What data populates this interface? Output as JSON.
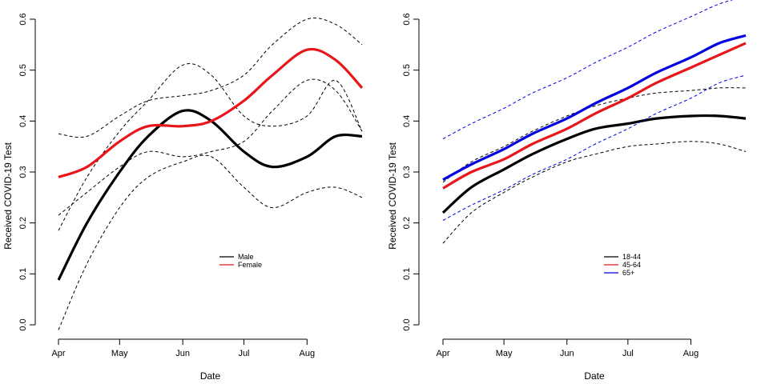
{
  "chart_data": [
    {
      "type": "line",
      "xlabel": "Date",
      "ylabel": "Received COVID-19 Test",
      "ylim": [
        0.0,
        0.6
      ],
      "xlim": [
        "2020-04-01",
        "2020-08-28"
      ],
      "x_ticks": [
        "Apr",
        "May",
        "Jun",
        "Jul",
        "Aug"
      ],
      "y_ticks": [
        "0.0",
        "0.1",
        "0.2",
        "0.3",
        "0.4",
        "0.5",
        "0.6"
      ],
      "legend_position": "bottom-center",
      "x": [
        "2020-04-01",
        "2020-04-15",
        "2020-05-01",
        "2020-05-15",
        "2020-06-01",
        "2020-06-15",
        "2020-07-01",
        "2020-07-15",
        "2020-08-01",
        "2020-08-15",
        "2020-08-28"
      ],
      "series": [
        {
          "name": "Male",
          "color": "#000000",
          "line": "solid",
          "values": [
            0.088,
            0.2,
            0.3,
            0.37,
            0.42,
            0.4,
            0.34,
            0.31,
            0.33,
            0.37,
            0.37
          ],
          "lower": [
            -0.01,
            0.12,
            0.23,
            0.29,
            0.32,
            0.33,
            0.27,
            0.23,
            0.26,
            0.27,
            0.25
          ],
          "upper": [
            0.185,
            0.29,
            0.38,
            0.44,
            0.51,
            0.49,
            0.41,
            0.39,
            0.41,
            0.48,
            0.38
          ]
        },
        {
          "name": "Female",
          "color": "#e8161b",
          "line": "solid",
          "values": [
            0.29,
            0.31,
            0.36,
            0.39,
            0.39,
            0.4,
            0.44,
            0.49,
            0.54,
            0.52,
            0.465
          ],
          "lower": [
            0.215,
            0.26,
            0.31,
            0.34,
            0.33,
            0.34,
            0.36,
            0.42,
            0.48,
            0.46,
            0.38
          ],
          "upper": [
            0.375,
            0.37,
            0.41,
            0.44,
            0.45,
            0.46,
            0.49,
            0.55,
            0.6,
            0.59,
            0.55
          ]
        }
      ]
    },
    {
      "type": "line",
      "xlabel": "Date",
      "ylabel": "Received COVID-19 Test",
      "ylim": [
        0.0,
        0.6
      ],
      "xlim": [
        "2020-04-01",
        "2020-08-28"
      ],
      "x_ticks": [
        "Apr",
        "May",
        "Jun",
        "Jul",
        "Aug"
      ],
      "y_ticks": [
        "0.0",
        "0.1",
        "0.2",
        "0.3",
        "0.4",
        "0.5",
        "0.6"
      ],
      "legend_position": "bottom-center",
      "x": [
        "2020-04-01",
        "2020-04-15",
        "2020-05-01",
        "2020-05-15",
        "2020-06-01",
        "2020-06-15",
        "2020-07-01",
        "2020-07-15",
        "2020-08-01",
        "2020-08-15",
        "2020-08-28"
      ],
      "series": [
        {
          "name": "18-44",
          "color": "#000000",
          "line": "solid",
          "values": [
            0.22,
            0.27,
            0.305,
            0.335,
            0.365,
            0.385,
            0.395,
            0.405,
            0.41,
            0.41,
            0.405
          ],
          "lower": [
            0.16,
            0.22,
            0.26,
            0.29,
            0.32,
            0.335,
            0.35,
            0.355,
            0.36,
            0.355,
            0.34
          ],
          "upper": [
            0.28,
            0.32,
            0.35,
            0.38,
            0.41,
            0.43,
            0.445,
            0.455,
            0.46,
            0.465,
            0.465
          ]
        },
        {
          "name": "45-64",
          "color": "#e8161b",
          "line": "solid",
          "values": [
            0.268,
            0.3,
            0.325,
            0.355,
            0.385,
            0.415,
            0.445,
            0.475,
            0.505,
            0.53,
            0.553
          ]
        },
        {
          "name": "65+",
          "color": "#0000e0",
          "line": "solid",
          "values": [
            0.285,
            0.315,
            0.345,
            0.375,
            0.405,
            0.435,
            0.465,
            0.495,
            0.525,
            0.553,
            0.568
          ],
          "lower": [
            0.205,
            0.235,
            0.265,
            0.295,
            0.325,
            0.355,
            0.385,
            0.415,
            0.445,
            0.475,
            0.49
          ],
          "upper": [
            0.365,
            0.395,
            0.425,
            0.455,
            0.485,
            0.515,
            0.545,
            0.575,
            0.605,
            0.63,
            0.645
          ]
        }
      ]
    }
  ]
}
